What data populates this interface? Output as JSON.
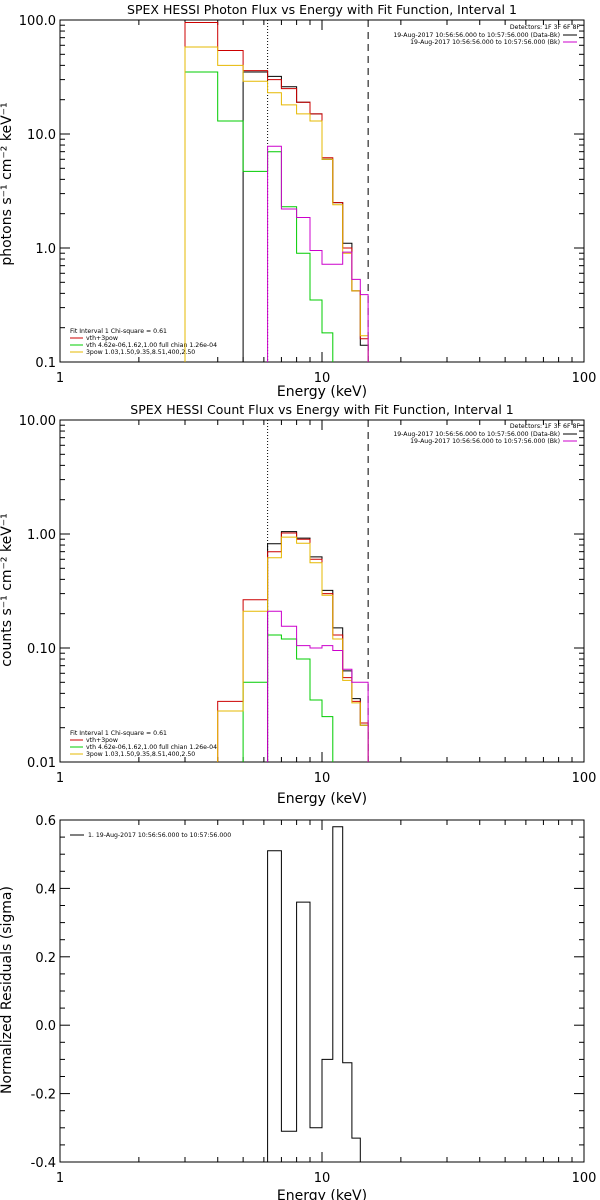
{
  "chart_data": [
    {
      "type": "line",
      "title": "SPEX HESSI Photon Flux vs Energy with Fit Function, Interval 1",
      "xlabel": "Energy (keV)",
      "ylabel": "photons s⁻¹ cm⁻² keV⁻¹",
      "xscale": "log",
      "yscale": "log",
      "xlim": [
        1,
        100
      ],
      "ylim": [
        0.1,
        100
      ],
      "x_ticks": [
        "1",
        "10",
        "100"
      ],
      "y_ticks": [
        "0.1",
        "1.0",
        "10.0",
        "100.0"
      ],
      "info_lines": [
        "Detectors: 1F 3F 6F 8F",
        "19-Aug-2017 10:56:56.000 to 10:57:56.000 (Data-Bk)",
        "19-Aug-2017 10:56:56.000 to 10:57:56.000 (Bk)"
      ],
      "fit_lines": [
        "Fit Interval 1    Chi-square = 0.61",
        "vth+3pow",
        "vth 4.62e-06,1.62,1.00  full chian 1.26e-04",
        "3pow 1.03,1.50,9.35,8.51,400,2.50"
      ],
      "vlines": [
        {
          "x": 6.2,
          "style": "dotted"
        },
        {
          "x": 15.0,
          "style": "dashed"
        }
      ],
      "colors": {
        "data": "#000000",
        "fit": "#cc0000",
        "vth": "#00cc00",
        "pow": "#e6b800",
        "bk": "#cc00cc"
      },
      "edges": [
        3,
        4,
        5,
        6.2,
        7,
        8,
        9,
        10,
        11,
        12,
        13,
        14,
        15
      ],
      "series": [
        {
          "key": "data",
          "values": [
            null,
            null,
            35,
            32,
            26,
            19,
            15,
            6,
            2.5,
            1.1,
            0.42,
            0.14
          ]
        },
        {
          "key": "fit",
          "values": [
            95,
            54,
            36,
            30,
            25,
            19,
            15,
            6.2,
            2.5,
            1.0,
            0.42,
            0.16
          ]
        },
        {
          "key": "vth",
          "values": [
            35,
            13,
            4.7,
            7.0,
            2.3,
            0.9,
            0.35,
            0.18,
            null,
            null,
            null,
            null
          ]
        },
        {
          "key": "pow",
          "values": [
            58,
            40,
            29,
            23,
            18,
            15,
            13,
            6,
            2.4,
            0.9,
            0.42,
            0.17
          ]
        },
        {
          "key": "bk",
          "values": [
            null,
            null,
            null,
            7.8,
            2.2,
            1.85,
            0.95,
            0.72,
            0.72,
            0.92,
            0.53,
            0.39
          ]
        }
      ]
    },
    {
      "type": "line",
      "title": "SPEX HESSI Count Flux vs Energy with Fit Function, Interval 1",
      "xlabel": "Energy (keV)",
      "ylabel": "counts s⁻¹ cm⁻² keV⁻¹",
      "xscale": "log",
      "yscale": "log",
      "xlim": [
        1,
        100
      ],
      "ylim": [
        0.01,
        10
      ],
      "x_ticks": [
        "1",
        "10",
        "100"
      ],
      "y_ticks": [
        "0.01",
        "0.10",
        "1.00",
        "10.00"
      ],
      "info_lines": [
        "Detectors: 1F 3F 6F 8F",
        "19-Aug-2017 10:56:56.000 to 10:57:56.000 (Data-Bk)",
        "19-Aug-2017 10:56:56.000 to 10:57:56.000 (Bk)"
      ],
      "fit_lines": [
        "Fit Interval 1    Chi-square = 0.61",
        "vth+3pow",
        "vth 4.62e-06,1.62,1.00  full chian 1.26e-04",
        "3pow 1.03,1.50,9.35,8.51,400,2.50"
      ],
      "vlines": [
        {
          "x": 6.2,
          "style": "dotted"
        },
        {
          "x": 15.0,
          "style": "dashed"
        }
      ],
      "colors": {
        "data": "#000000",
        "fit": "#cc0000",
        "vth": "#00cc00",
        "pow": "#e6b800",
        "bk": "#cc00cc"
      },
      "edges": [
        3,
        4,
        5,
        6.2,
        7,
        8,
        9,
        10,
        11,
        12,
        13,
        14,
        15
      ],
      "series": [
        {
          "key": "data",
          "values": [
            null,
            null,
            null,
            0.82,
            1.05,
            0.92,
            0.63,
            0.32,
            0.15,
            0.063,
            0.036,
            0.021
          ]
        },
        {
          "key": "fit",
          "values": [
            null,
            0.034,
            0.265,
            0.7,
            1.02,
            0.9,
            0.6,
            0.3,
            0.13,
            0.055,
            0.034,
            0.022
          ]
        },
        {
          "key": "vth",
          "values": [
            null,
            null,
            0.05,
            0.13,
            0.12,
            0.08,
            0.035,
            0.025,
            null,
            null,
            null,
            null
          ]
        },
        {
          "key": "pow",
          "values": [
            null,
            0.028,
            0.21,
            0.62,
            0.94,
            0.83,
            0.56,
            0.29,
            0.12,
            0.052,
            0.033,
            0.021
          ]
        },
        {
          "key": "bk",
          "values": [
            null,
            null,
            null,
            0.21,
            0.155,
            0.105,
            0.1,
            0.105,
            0.095,
            0.065,
            0.05,
            0.05
          ]
        }
      ]
    },
    {
      "type": "line",
      "title": "",
      "xlabel": "Energy (keV)",
      "ylabel": "Normalized Residuals (sigma)",
      "xscale": "log",
      "yscale": "linear",
      "xlim": [
        1,
        100
      ],
      "ylim": [
        -0.4,
        0.6
      ],
      "x_ticks": [
        "1",
        "10",
        "100"
      ],
      "y_ticks": [
        "-0.4",
        "-0.2",
        "0.0",
        "0.2",
        "0.4",
        "0.6"
      ],
      "legend": "1. 19-Aug-2017 10:56:56.000 to 10:57:56.000",
      "edges": [
        6.2,
        7,
        8,
        9,
        10,
        11,
        12,
        13,
        14,
        15
      ],
      "values": [
        0.51,
        -0.31,
        0.36,
        -0.3,
        -0.1,
        0.58,
        -0.11,
        -0.33,
        -0.4
      ]
    }
  ]
}
